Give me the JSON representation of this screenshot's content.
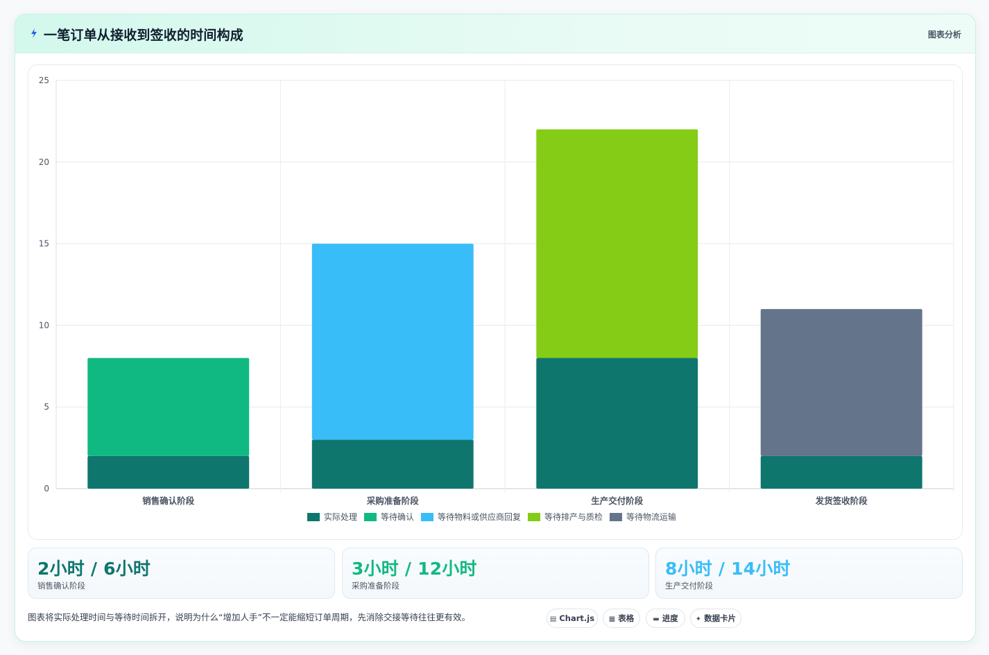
{
  "header": {
    "title": "一笔订单从接收到签收的时间构成",
    "tag": "图表分析"
  },
  "chart_data": {
    "type": "bar",
    "stacked": true,
    "categories": [
      "销售确认阶段",
      "采购准备阶段",
      "生产交付阶段",
      "发货签收阶段"
    ],
    "series": [
      {
        "name": "实际处理",
        "color": "#0f766e",
        "values": [
          2,
          3,
          8,
          2
        ]
      },
      {
        "name": "等待确认",
        "color": "#10b981",
        "values": [
          6,
          0,
          0,
          0
        ]
      },
      {
        "name": "等待物料或供应商回复",
        "color": "#38bdf8",
        "values": [
          0,
          12,
          0,
          0
        ]
      },
      {
        "name": "等待排产与质检",
        "color": "#84cc16",
        "values": [
          0,
          0,
          14,
          0
        ]
      },
      {
        "name": "等待物流运输",
        "color": "#64748b",
        "values": [
          0,
          0,
          0,
          9
        ]
      }
    ],
    "ylim": [
      0,
      25
    ],
    "yticks": [
      0,
      5,
      10,
      15,
      20,
      25
    ],
    "legend_position": "bottom",
    "grid": true
  },
  "stats": [
    {
      "value": "2小时 / 6小时",
      "label": "销售确认阶段",
      "color": "#0f766e"
    },
    {
      "value": "3小时 / 12小时",
      "label": "采购准备阶段",
      "color": "#10b981"
    },
    {
      "value": "8小时 / 14小时",
      "label": "生产交付阶段",
      "color": "#38bdf8"
    }
  ],
  "footer": {
    "note": "图表将实际处理时间与等待时间拆开，说明为什么“增加人手”不一定能缩短订单周期，先消除交接等待往往更有效。",
    "chips": [
      {
        "icon": "chart-icon",
        "glyph": "▤",
        "label": "Chart.js"
      },
      {
        "icon": "table-icon",
        "glyph": "▦",
        "label": "表格"
      },
      {
        "icon": "progress-icon",
        "glyph": "▬",
        "label": "进度"
      },
      {
        "icon": "data-card-icon",
        "glyph": "✦",
        "label": "数据卡片"
      }
    ]
  }
}
